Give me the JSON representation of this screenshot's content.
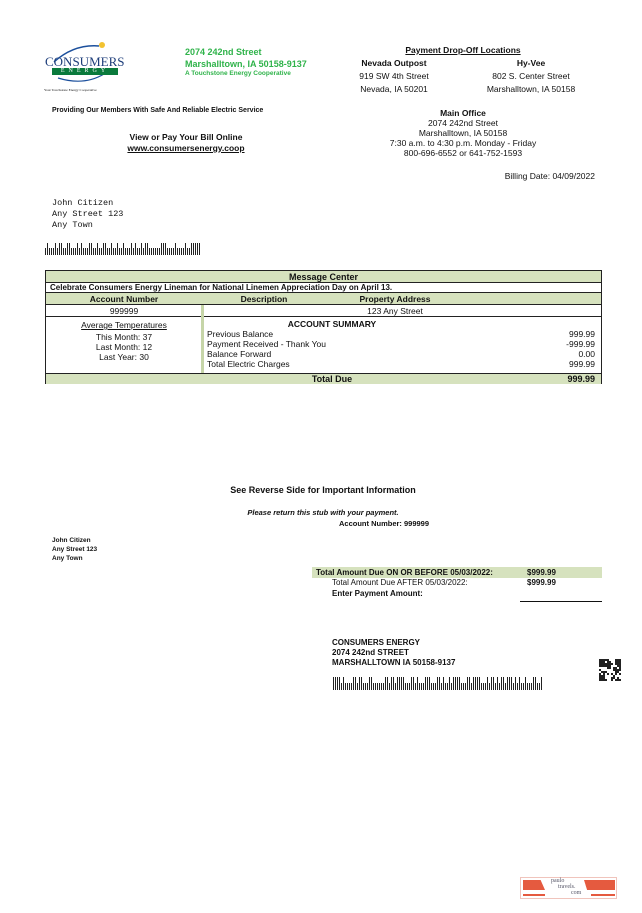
{
  "logo": {
    "name": "CONSUMERS",
    "sub": "ENERGY",
    "tagline": "Your Touchstone Energy Cooperative",
    "brand_color": "#0a7a3c"
  },
  "company": {
    "street": "2074 242nd Street",
    "city": "Marshalltown, IA 50158-9137",
    "coop": "A Touchstone Energy Cooperative"
  },
  "dropoff": {
    "title": "Payment Drop-Off Locations",
    "locations": [
      {
        "name": "Nevada Outpost",
        "street": "919 SW 4th Street",
        "city": "Nevada, IA 50201"
      },
      {
        "name": "Hy-Vee",
        "street": "802 S. Center Street",
        "city": "Marshalltown, IA 50158"
      }
    ]
  },
  "slogan": "Providing Our Members With Safe And Reliable Electric Service",
  "main_office": {
    "title": "Main Office",
    "street": "2074 242nd Street",
    "city": "Marshalltown, IA 50158",
    "hours": "7:30 a.m. to 4:30 p.m. Monday - Friday",
    "phone": "800-696-6552 or 641-752-1593"
  },
  "online": {
    "label": "View or Pay Your Bill Online",
    "url": "www.consumersenergy.coop"
  },
  "billing_date": "Billing Date: 04/09/2022",
  "customer": {
    "name": "John Citizen",
    "street": "Any Street 123",
    "town": "Any Town"
  },
  "table": {
    "message_center": "Message Center",
    "message": "Celebrate Consumers Energy Lineman for National Linemen Appreciation Day on April 13.",
    "headers": [
      "Account Number",
      "Description",
      "Property Address"
    ],
    "account_number": "999999",
    "property_address": "123 Any Street",
    "temps": {
      "title": "Average Temperatures",
      "items": [
        "This Month: 37",
        "Last Month: 12",
        "Last Year: 30"
      ]
    },
    "summary": {
      "title": "ACCOUNT SUMMARY",
      "items": [
        {
          "label": "Previous Balance",
          "value": "999.99"
        },
        {
          "label": "Payment Received - Thank You",
          "value": "-999.99"
        },
        {
          "label": "Balance Forward",
          "value": "0.00"
        },
        {
          "label": "Total Electric Charges",
          "value": "999.99"
        }
      ]
    },
    "total_label": "Total Due",
    "total_value": "999.99",
    "accent": "#d6e2be"
  },
  "stub": {
    "reverse": "See Reverse Side for Important Information",
    "return": "Please return this stub with your payment.",
    "account": "Account Number: 999999",
    "due_before_label": "Total Amount Due ON OR BEFORE 05/03/2022:",
    "due_before_value": "$999.99",
    "due_after_label": "Total Amount Due AFTER 05/03/2022:",
    "due_after_value": "$999.99",
    "enter_label": "Enter Payment Amount:",
    "remit": [
      "CONSUMERS ENERGY",
      "2074 242nd STREET",
      "MARSHALLTOWN IA 50158-9137"
    ]
  },
  "watermark": {
    "text": [
      "paulo",
      "travels.",
      "com"
    ]
  }
}
